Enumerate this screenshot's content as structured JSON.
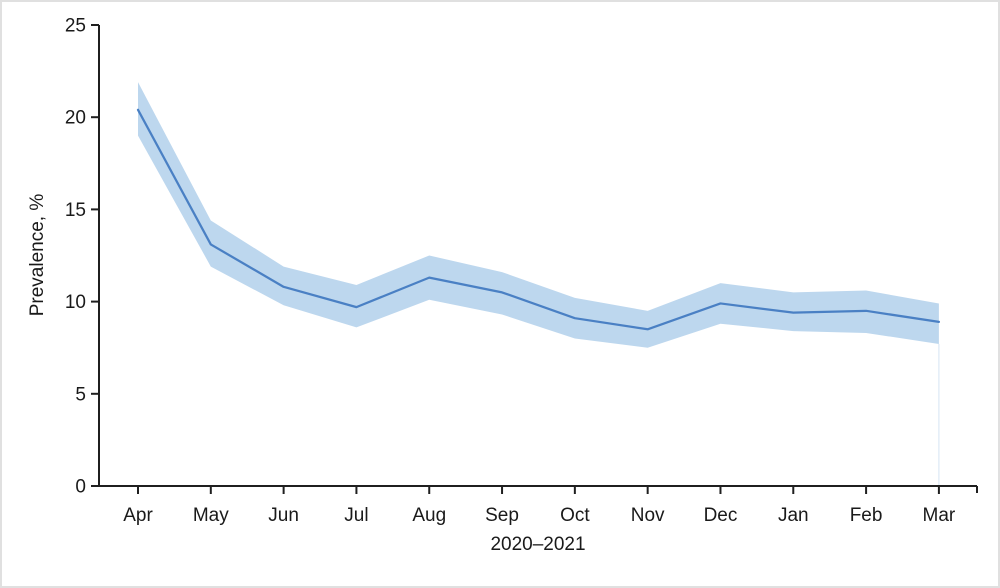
{
  "figure": {
    "background": "#ffffff",
    "border_color": "#e0e0e0"
  },
  "chart_data": {
    "type": "line",
    "title": "",
    "xlabel": "2020–2021",
    "ylabel": "Prevalence, %",
    "x_categories": [
      "Apr",
      "May",
      "Jun",
      "Jul",
      "Aug",
      "Sep",
      "Oct",
      "Nov",
      "Dec",
      "Jan",
      "Feb",
      "Mar"
    ],
    "ylim": [
      0,
      25
    ],
    "y_ticks": [
      0,
      5,
      10,
      15,
      20,
      25
    ],
    "grid": false,
    "legend": "none",
    "band_color": "#bdd7ee",
    "line_color": "#4a80c4",
    "axis_color": "#1f1f1f",
    "series": [
      {
        "name": "Prevalence (mean)",
        "role": "mean",
        "values": [
          20.4,
          13.1,
          10.8,
          9.7,
          11.3,
          10.5,
          9.1,
          8.5,
          9.9,
          9.4,
          9.5,
          8.9
        ]
      },
      {
        "name": "Confidence band upper",
        "role": "band-upper",
        "values": [
          21.9,
          14.4,
          11.9,
          10.9,
          12.5,
          11.6,
          10.2,
          9.5,
          11.0,
          10.5,
          10.6,
          9.9
        ]
      },
      {
        "name": "Confidence band lower",
        "role": "band-lower",
        "values": [
          19.0,
          11.9,
          9.8,
          8.6,
          10.1,
          9.3,
          8.0,
          7.5,
          8.8,
          8.4,
          8.3,
          7.7
        ]
      }
    ]
  }
}
